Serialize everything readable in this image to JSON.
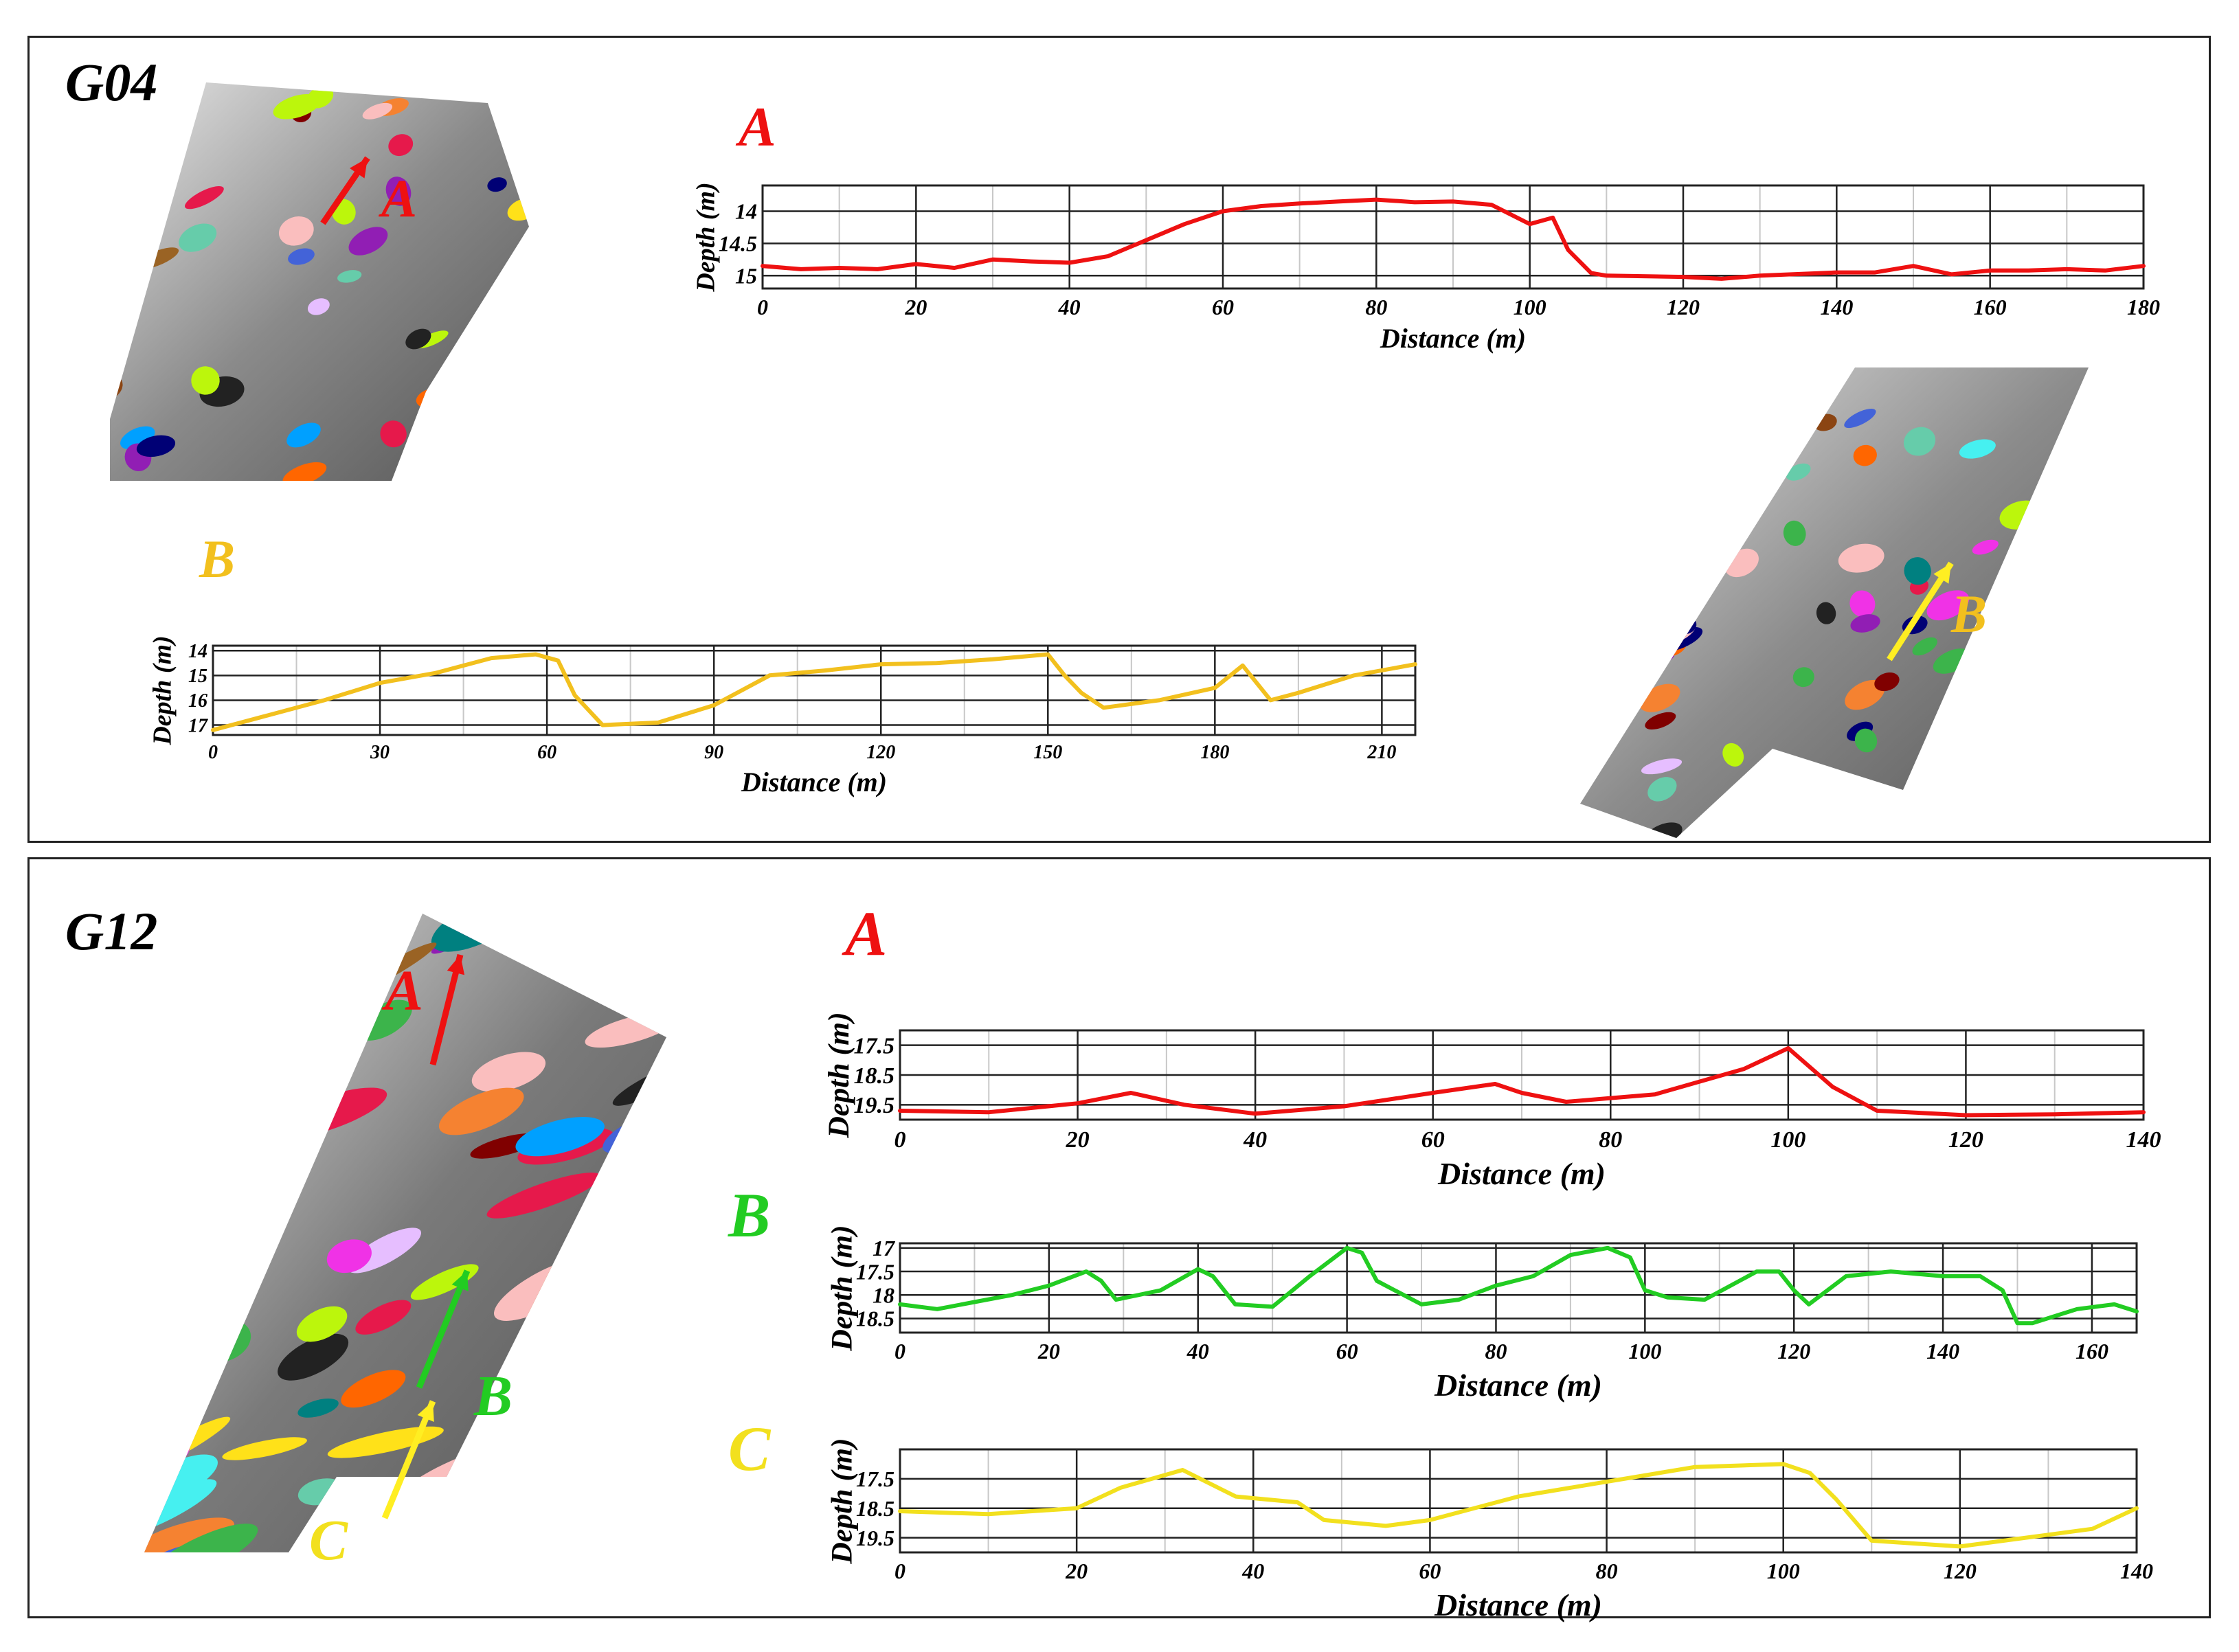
{
  "panels": [
    {
      "id": "G04",
      "title": "G04",
      "maps": [
        {
          "id": "map-g04-1",
          "shape": "bar-rotated",
          "base_color": "#8a8a8a",
          "bright_side": "left",
          "arrow": {
            "color": "#ee1111",
            "label": "A",
            "label_color": "#ee1111"
          }
        },
        {
          "id": "map-g04-2",
          "shape": "strip-diag",
          "base_color": "#8c8c8c",
          "bright_side": "bottom",
          "arrow": {
            "color": "#ffee22",
            "label": "B",
            "label_color": "#f2c01e"
          }
        }
      ],
      "charts": [
        {
          "id": "g04-a",
          "label": "A",
          "label_color": "#ee1111",
          "line_color": "#ee1111",
          "xlabel": "Distance (m)",
          "ylabel": "Depth (m)",
          "xlim": [
            0,
            180
          ],
          "xticks": [
            0,
            20,
            40,
            60,
            80,
            100,
            120,
            140,
            160,
            180
          ],
          "xtick_labels": [
            "0",
            "20",
            "40",
            "60",
            "80",
            "100",
            "120",
            "140",
            "160",
            "180"
          ],
          "ylim": [
            13.6,
            15.2
          ],
          "yticks": [
            14,
            14.5,
            15
          ],
          "ytick_labels": [
            "14",
            "14.5",
            "15"
          ],
          "x": [
            0,
            5,
            10,
            15,
            20,
            25,
            30,
            35,
            40,
            45,
            50,
            55,
            60,
            65,
            70,
            75,
            80,
            85,
            90,
            95,
            100,
            103,
            105,
            108,
            110,
            120,
            125,
            130,
            140,
            145,
            150,
            155,
            160,
            165,
            170,
            175,
            180
          ],
          "y": [
            14.85,
            14.9,
            14.88,
            14.9,
            14.82,
            14.88,
            14.75,
            14.78,
            14.8,
            14.7,
            14.45,
            14.2,
            14.0,
            13.92,
            13.88,
            13.85,
            13.82,
            13.86,
            13.85,
            13.9,
            14.2,
            14.1,
            14.6,
            14.96,
            15.0,
            15.02,
            15.05,
            15.0,
            14.95,
            14.95,
            14.85,
            14.98,
            14.92,
            14.92,
            14.9,
            14.92,
            14.85
          ]
        },
        {
          "id": "g04-b",
          "label": "B",
          "label_color": "#f2c01e",
          "line_color": "#f2c01e",
          "xlabel": "Distance (m)",
          "ylabel": "Depth (m)",
          "xlim": [
            0,
            216
          ],
          "xticks": [
            0,
            30,
            60,
            90,
            120,
            150,
            180,
            210
          ],
          "xtick_labels": [
            "0",
            "30",
            "60",
            "90",
            "120",
            "150",
            "180",
            "210"
          ],
          "ylim": [
            13.8,
            17.4
          ],
          "yticks": [
            14,
            15,
            16,
            17
          ],
          "ytick_labels": [
            "14",
            "15",
            "16",
            "17"
          ],
          "x": [
            0,
            10,
            20,
            30,
            40,
            50,
            58,
            62,
            65,
            70,
            80,
            90,
            95,
            100,
            110,
            120,
            130,
            140,
            150,
            153,
            156,
            160,
            170,
            180,
            185,
            190,
            195,
            205,
            216
          ],
          "y": [
            17.2,
            16.6,
            16.0,
            15.3,
            14.9,
            14.3,
            14.15,
            14.4,
            15.8,
            17.0,
            16.9,
            16.2,
            15.6,
            15.0,
            14.8,
            14.55,
            14.5,
            14.35,
            14.15,
            15.0,
            15.7,
            16.3,
            16.0,
            15.5,
            14.6,
            16.0,
            15.7,
            15.0,
            14.55
          ]
        }
      ]
    },
    {
      "id": "G12",
      "title": "G12",
      "maps": [
        {
          "id": "map-g12",
          "shape": "wedge",
          "base_color": "#7a7a7a",
          "bright_side": "right",
          "arrows": [
            {
              "color": "#ee1111",
              "label": "A",
              "label_color": "#ee1111"
            },
            {
              "color": "#22cc22",
              "label": "B",
              "label_color": "#22cc22"
            },
            {
              "color": "#ffee22",
              "label": "C",
              "label_color": "#f2e01e"
            }
          ]
        }
      ],
      "charts": [
        {
          "id": "g12-a",
          "label": "A",
          "label_color": "#ee1111",
          "line_color": "#ee1111",
          "xlabel": "Distance (m)",
          "ylabel": "Depth (m)",
          "xlim": [
            0,
            140
          ],
          "xticks": [
            0,
            20,
            40,
            60,
            80,
            100,
            120,
            140
          ],
          "xtick_labels": [
            "0",
            "20",
            "40",
            "60",
            "80",
            "100",
            "120",
            "140"
          ],
          "ylim": [
            17.0,
            20.0
          ],
          "yticks": [
            17.5,
            18.5,
            19.5
          ],
          "ytick_labels": [
            "17.5",
            "18.5",
            "19.5"
          ],
          "x": [
            0,
            10,
            20,
            26,
            32,
            40,
            50,
            60,
            67,
            70,
            75,
            85,
            95,
            100,
            105,
            110,
            120,
            130,
            140
          ],
          "y": [
            19.7,
            19.75,
            19.45,
            19.1,
            19.5,
            19.8,
            19.55,
            19.1,
            18.8,
            19.1,
            19.4,
            19.15,
            18.3,
            17.6,
            18.9,
            19.7,
            19.85,
            19.82,
            19.75
          ]
        },
        {
          "id": "g12-b",
          "label": "B",
          "label_color": "#22cc22",
          "line_color": "#22cc22",
          "xlabel": "Distance (m)",
          "ylabel": "Depth (m)",
          "xlim": [
            0,
            166
          ],
          "xticks": [
            0,
            20,
            40,
            60,
            80,
            100,
            120,
            140,
            160
          ],
          "xtick_labels": [
            "0",
            "20",
            "40",
            "60",
            "80",
            "100",
            "120",
            "140",
            "160"
          ],
          "ylim": [
            16.9,
            18.8
          ],
          "yticks": [
            17,
            17.5,
            18,
            18.5
          ],
          "ytick_labels": [
            "17",
            "17.5",
            "18",
            "18.5"
          ],
          "x": [
            0,
            5,
            10,
            15,
            20,
            25,
            27,
            29,
            35,
            40,
            42,
            45,
            50,
            55,
            60,
            62,
            64,
            70,
            75,
            80,
            85,
            90,
            95,
            98,
            100,
            103,
            108,
            115,
            118,
            120,
            122,
            127,
            133,
            140,
            145,
            148,
            150,
            152,
            158,
            163,
            166
          ],
          "y": [
            18.2,
            18.3,
            18.15,
            18.0,
            17.8,
            17.5,
            17.7,
            18.1,
            17.9,
            17.45,
            17.6,
            18.2,
            18.25,
            17.6,
            17.0,
            17.1,
            17.7,
            18.2,
            18.1,
            17.8,
            17.6,
            17.15,
            17.0,
            17.2,
            17.9,
            18.05,
            18.1,
            17.5,
            17.5,
            17.9,
            18.2,
            17.6,
            17.5,
            17.6,
            17.6,
            17.9,
            18.6,
            18.6,
            18.3,
            18.2,
            18.35
          ]
        },
        {
          "id": "g12-c",
          "label": "C",
          "label_color": "#f2e01e",
          "line_color": "#f2e01e",
          "xlabel": "Distance (m)",
          "ylabel": "Depth (m)",
          "xlim": [
            0,
            140
          ],
          "xticks": [
            0,
            20,
            40,
            60,
            80,
            100,
            120,
            140
          ],
          "xtick_labels": [
            "0",
            "20",
            "40",
            "60",
            "80",
            "100",
            "120",
            "140"
          ],
          "ylim": [
            16.5,
            20.0
          ],
          "yticks": [
            17.5,
            18.5,
            19.5
          ],
          "ytick_labels": [
            "17.5",
            "18.5",
            "19.5"
          ],
          "x": [
            0,
            10,
            20,
            25,
            32,
            38,
            45,
            48,
            55,
            60,
            70,
            80,
            90,
            100,
            103,
            106,
            110,
            120,
            130,
            135,
            140
          ],
          "y": [
            18.6,
            18.7,
            18.5,
            17.8,
            17.2,
            18.1,
            18.3,
            18.9,
            19.1,
            18.9,
            18.1,
            17.6,
            17.1,
            17.0,
            17.3,
            18.2,
            19.6,
            19.8,
            19.4,
            19.2,
            18.5
          ]
        }
      ]
    }
  ]
}
